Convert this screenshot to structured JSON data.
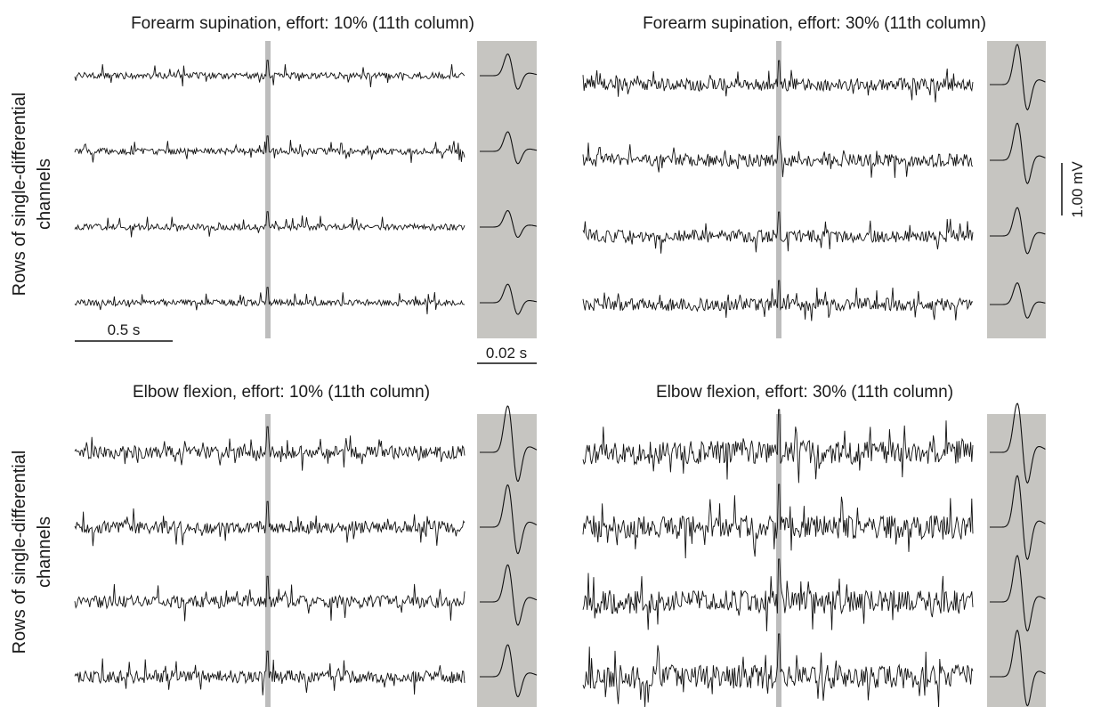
{
  "figure": {
    "ylabel_line1": "Rows of single-differential",
    "ylabel_line2": "channels",
    "scalebars": {
      "time_long": "0.5 s",
      "time_short": "0.02 s",
      "amplitude": "1.00 mV"
    },
    "colors": {
      "trace": "#111111",
      "highlight_bar": "#bdbdbd",
      "muap_panel_bg": "#c6c5c1"
    }
  },
  "chart_data": [
    {
      "type": "line",
      "title": "Forearm supination, effort: 10% (11th column)",
      "rows": 4,
      "noise_amplitude_mV": 0.06,
      "spike_amplitude_mV": 0.18,
      "muap_peak_mV": [
        0.42,
        0.38,
        0.32,
        0.36
      ]
    },
    {
      "type": "line",
      "title": "Forearm supination, effort: 30% (11th column)",
      "rows": 4,
      "noise_amplitude_mV": 0.12,
      "spike_amplitude_mV": 0.28,
      "muap_peak_mV": [
        0.78,
        0.72,
        0.55,
        0.42
      ]
    },
    {
      "type": "line",
      "title": "Elbow flexion, effort: 10% (11th column)",
      "rows": 4,
      "noise_amplitude_mV": 0.12,
      "spike_amplitude_mV": 0.3,
      "muap_peak_mV": [
        0.9,
        0.82,
        0.72,
        0.62
      ]
    },
    {
      "type": "line",
      "title": "Elbow flexion, effort: 30% (11th column)",
      "rows": 4,
      "noise_amplitude_mV": 0.22,
      "spike_amplitude_mV": 0.5,
      "muap_peak_mV": [
        0.95,
        1.0,
        0.9,
        0.9
      ]
    }
  ]
}
